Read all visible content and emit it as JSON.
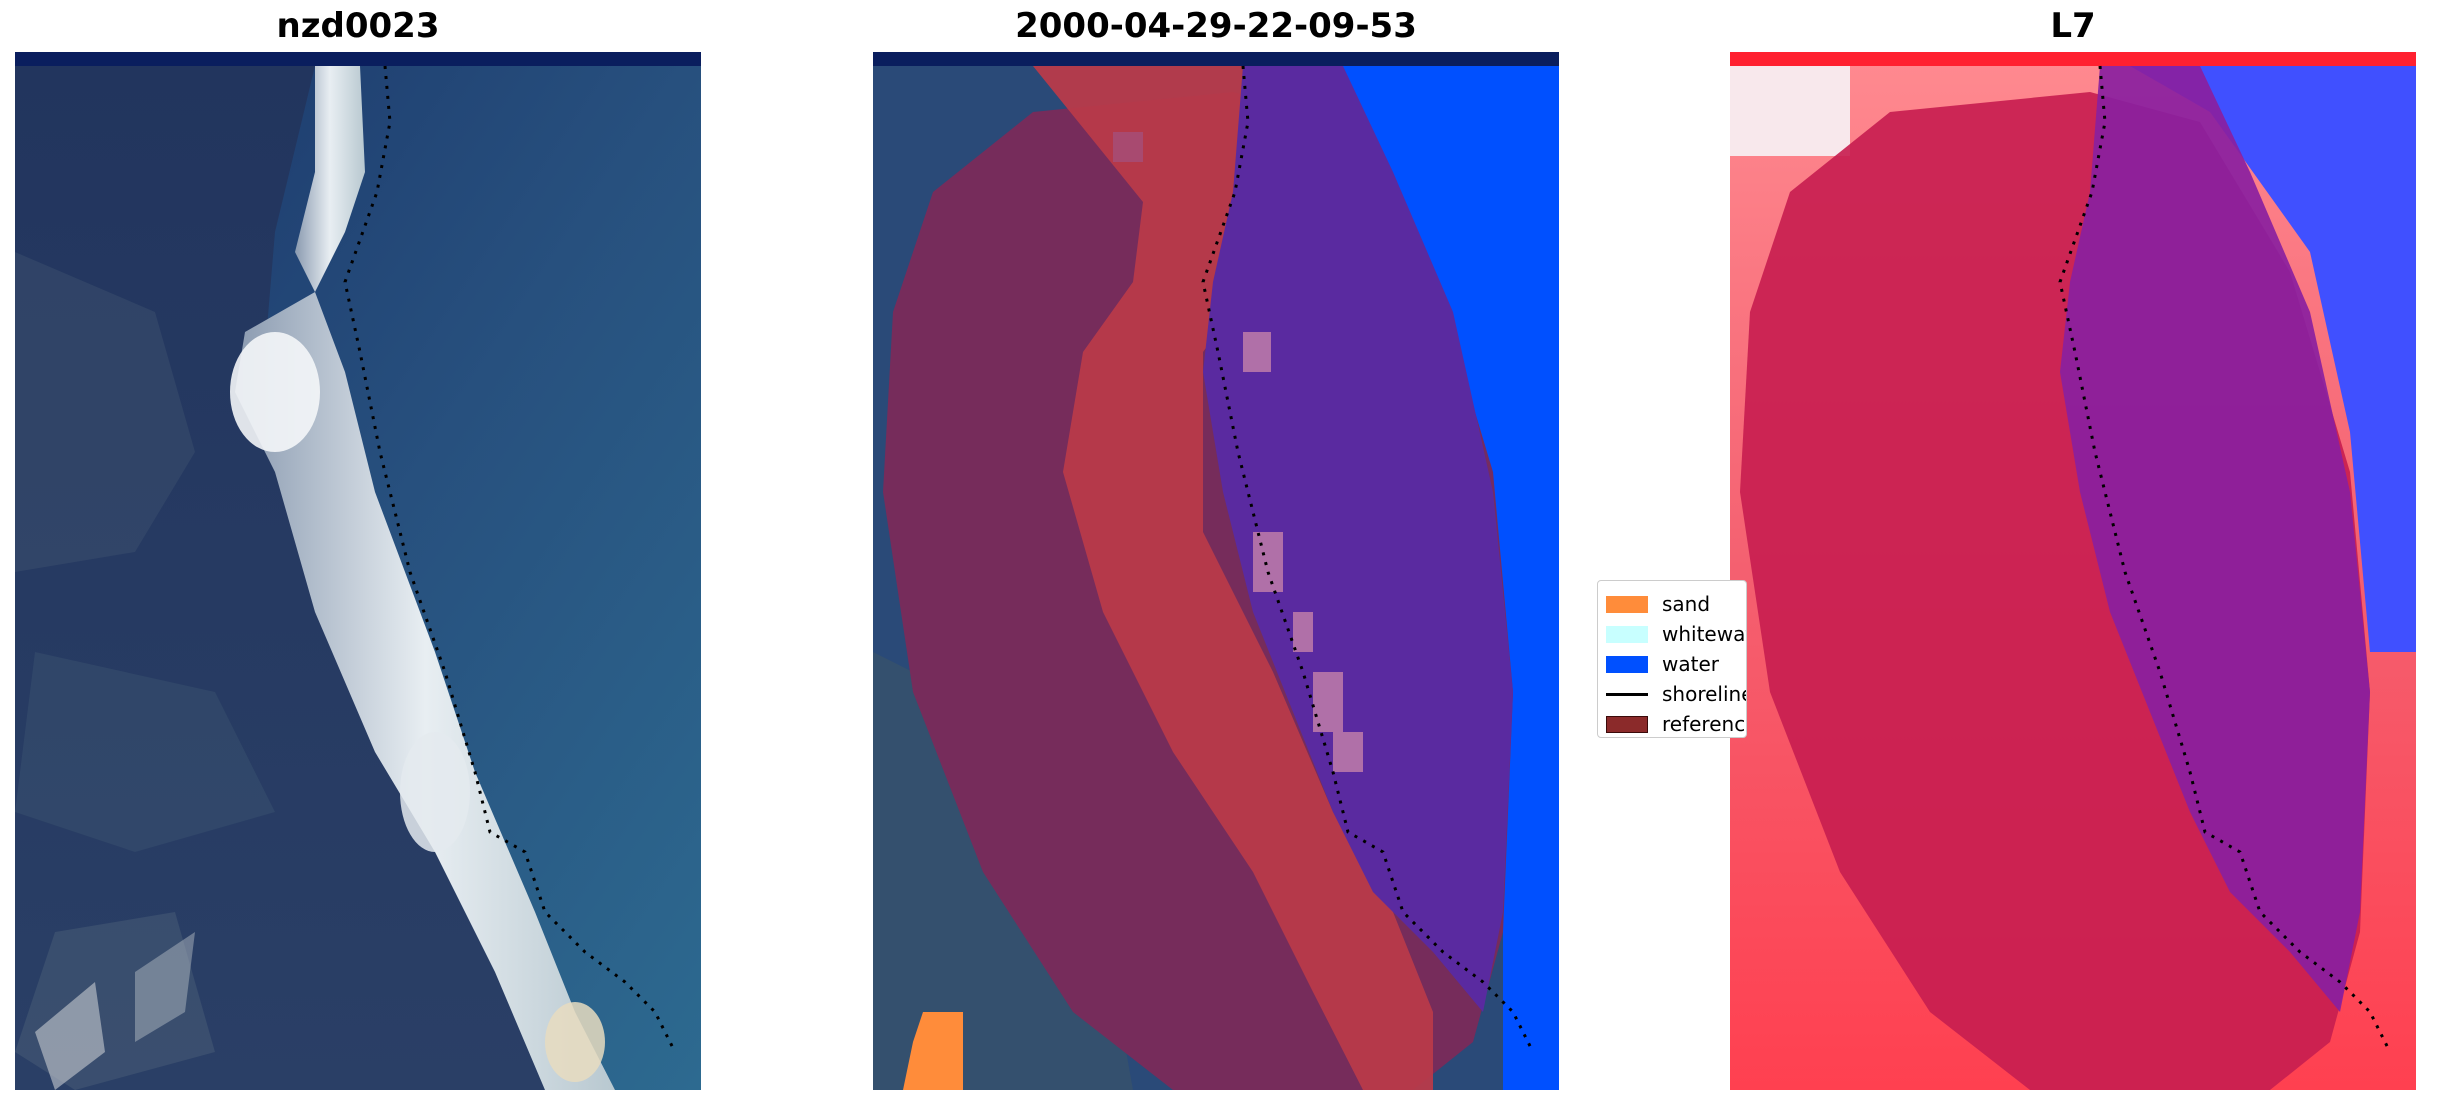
{
  "panels": [
    {
      "title": "nzd0023"
    },
    {
      "title": "2000-04-29-22-09-53"
    },
    {
      "title": "L7"
    }
  ],
  "legend": {
    "items": [
      {
        "label": "sand",
        "color": "#ff8c3a",
        "kind": "patch"
      },
      {
        "label": "whitewater",
        "color": "#c8ffff",
        "kind": "patch"
      },
      {
        "label": "water",
        "color": "#0050ff",
        "kind": "patch"
      },
      {
        "label": "shoreline",
        "color": "#000000",
        "kind": "line"
      },
      {
        "label": "reference",
        "color": "#8b2a2a",
        "kind": "patch"
      }
    ]
  },
  "colors": {
    "ocean_dark": "#1b2f5c",
    "ocean_mid": "#2a5a86",
    "beach_white": "#e8ecf0",
    "classified_water": "#0050ff",
    "classified_sand_overlay": "#b83a4a",
    "reference_overlay": "#7a2a5a",
    "water_overlay": "#5a2aa0",
    "index_red": "#ff3040",
    "index_blue": "#4050ff",
    "index_purple": "#8a20a0"
  }
}
